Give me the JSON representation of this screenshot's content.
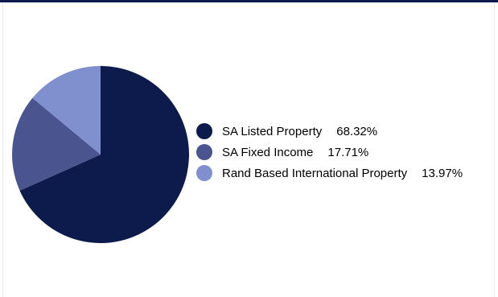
{
  "colors": {
    "frame_top": "#0d1b4c",
    "frame_side": "#e6e6e6"
  },
  "chart_data": {
    "type": "pie",
    "title": "",
    "categories": [
      "SA Listed Property",
      "SA Fixed Income",
      "Rand Based International Property"
    ],
    "values": [
      68.32,
      17.71,
      13.97
    ],
    "value_labels": [
      "68.32%",
      "17.71%",
      "13.97%"
    ],
    "colors": [
      "#0d1b4c",
      "#4a5590",
      "#8090cf"
    ],
    "start_angle_deg": 0,
    "direction": "clockwise",
    "legend_position": "right"
  }
}
